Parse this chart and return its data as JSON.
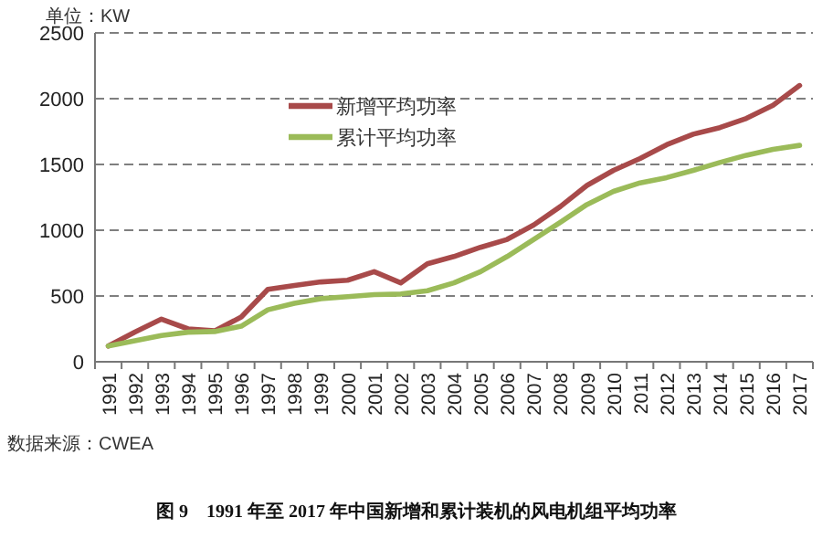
{
  "chart_data": {
    "type": "line",
    "title": "图 9　1991 年至 2017 年中国新增和累计装机的风电机组平均功率",
    "ylabel": "单位：KW",
    "annotations": [
      "数据来源：CWEA"
    ],
    "categories": [
      "1991",
      "1992",
      "1993",
      "1994",
      "1995",
      "1996",
      "1997",
      "1998",
      "1999",
      "2000",
      "2001",
      "2002",
      "2003",
      "2004",
      "2005",
      "2006",
      "2007",
      "2008",
      "2009",
      "2010",
      "2011",
      "2012",
      "2013",
      "2014",
      "2015",
      "2016",
      "2017"
    ],
    "series": [
      {
        "name": "新增平均功率",
        "color": "#a84a4a",
        "values": [
          120,
          225,
          324,
          250,
          235,
          340,
          550,
          580,
          607,
          620,
          685,
          600,
          745,
          800,
          870,
          930,
          1040,
          1180,
          1340,
          1455,
          1545,
          1650,
          1730,
          1780,
          1850,
          1950,
          2100
        ]
      },
      {
        "name": "累计平均功率",
        "color": "#9bbb59",
        "values": [
          120,
          160,
          200,
          225,
          230,
          270,
          395,
          445,
          480,
          495,
          510,
          515,
          540,
          600,
          685,
          800,
          930,
          1060,
          1195,
          1295,
          1360,
          1400,
          1455,
          1515,
          1570,
          1615,
          1645
        ]
      }
    ],
    "ylim": [
      0,
      2500
    ],
    "yticks": [
      0,
      500,
      1000,
      1500,
      2000,
      2500
    ],
    "grid": "y",
    "legend": "top",
    "marker": "none",
    "line_style": "solid"
  }
}
